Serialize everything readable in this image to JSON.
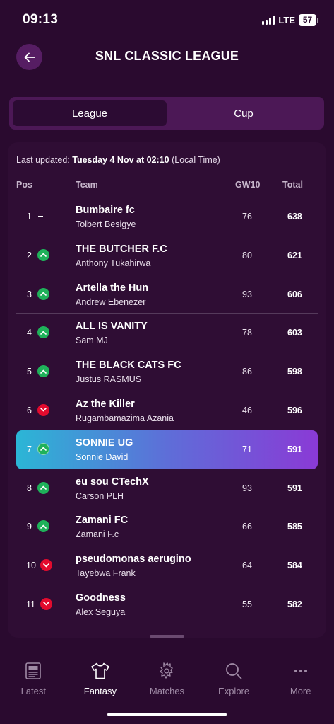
{
  "status_bar": {
    "time": "09:13",
    "network": "LTE",
    "battery": "57"
  },
  "header": {
    "title": "SNL CLASSIC LEAGUE"
  },
  "tabs": [
    {
      "label": "League",
      "active": true
    },
    {
      "label": "Cup",
      "active": false
    }
  ],
  "standings": {
    "last_updated_label": "Last updated:",
    "last_updated_value": "Tuesday 4 Nov at 02:10",
    "last_updated_suffix": "(Local Time)",
    "columns": {
      "pos": "Pos",
      "team": "Team",
      "gw": "GW10",
      "total": "Total"
    },
    "rows": [
      {
        "pos": "1",
        "movement": "same",
        "team": "Bumbaire fc",
        "manager": "Tolbert Besigye",
        "gw": "76",
        "total": "638"
      },
      {
        "pos": "2",
        "movement": "up",
        "team": "THE BUTCHER F.C",
        "manager": "Anthony Tukahirwa",
        "gw": "80",
        "total": "621"
      },
      {
        "pos": "3",
        "movement": "up",
        "team": "Artella the Hun",
        "manager": "Andrew Ebenezer",
        "gw": "93",
        "total": "606"
      },
      {
        "pos": "4",
        "movement": "up",
        "team": "ALL IS VANITY",
        "manager": "Sam MJ",
        "gw": "78",
        "total": "603"
      },
      {
        "pos": "5",
        "movement": "up",
        "team": "THE BLACK CATS FC",
        "manager": "Justus RASMUS",
        "gw": "86",
        "total": "598"
      },
      {
        "pos": "6",
        "movement": "down",
        "team": "Az the Killer",
        "manager": "Rugambamazima Azania",
        "gw": "46",
        "total": "596"
      },
      {
        "pos": "7",
        "movement": "up",
        "team": "SONNIE UG",
        "manager": "Sonnie David",
        "gw": "71",
        "total": "591",
        "highlight": true
      },
      {
        "pos": "8",
        "movement": "up",
        "team": "eu sou CTechX",
        "manager": "Carson PLH",
        "gw": "93",
        "total": "591"
      },
      {
        "pos": "9",
        "movement": "up",
        "team": "Zamani FC",
        "manager": "Zamani F.c",
        "gw": "66",
        "total": "585"
      },
      {
        "pos": "10",
        "movement": "down",
        "team": "pseudomonas aerugino",
        "manager": "Tayebwa Frank",
        "gw": "64",
        "total": "584"
      },
      {
        "pos": "11",
        "movement": "down",
        "team": "Goodness",
        "manager": "Alex Seguya",
        "gw": "55",
        "total": "582"
      }
    ]
  },
  "bottom_nav": [
    {
      "label": "Latest",
      "icon": "news-icon",
      "active": false
    },
    {
      "label": "Fantasy",
      "icon": "shirt-icon",
      "active": true
    },
    {
      "label": "Matches",
      "icon": "lion-icon",
      "active": false
    },
    {
      "label": "Explore",
      "icon": "search-icon",
      "active": false
    },
    {
      "label": "More",
      "icon": "more-dots-icon",
      "active": false
    }
  ],
  "colors": {
    "background": "#2a0a2f",
    "up": "#1fb15a",
    "down": "#e20b2e",
    "highlight_start": "#2bb6d6",
    "highlight_end": "#8a3ad6"
  }
}
